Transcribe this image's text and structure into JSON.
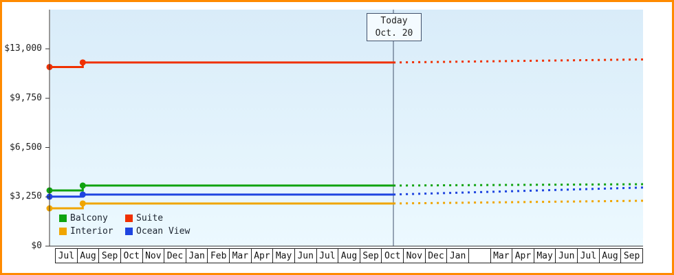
{
  "frame": {
    "border_color": "#ff8a00"
  },
  "legend": {
    "items": [
      {
        "label": "Balcony",
        "color": "#0fa30f"
      },
      {
        "label": "Suite",
        "color": "#f03000"
      },
      {
        "label": "Interior",
        "color": "#f0a500"
      },
      {
        "label": "Ocean View",
        "color": "#1e44e0"
      }
    ]
  },
  "chart_data": {
    "type": "line",
    "title": "",
    "xlabel": "",
    "ylabel": "",
    "grid": false,
    "legend_position": "bottom-left-inside",
    "x_axis": {
      "months": [
        "Jul",
        "Aug",
        "Sep",
        "Oct",
        "Nov",
        "Dec",
        "Jan",
        "Feb",
        "Mar",
        "Apr",
        "May",
        "Jun",
        "Jul",
        "Aug",
        "Sep",
        "Oct",
        "Nov",
        "Dec",
        "Jan",
        "",
        "Mar",
        "Apr",
        "May",
        "Jun",
        "Jul",
        "Aug",
        "Sep"
      ]
    },
    "y_axis": {
      "ticks": [
        {
          "label": "$0",
          "value": 0
        },
        {
          "label": "$3,250",
          "value": 3250
        },
        {
          "label": "$6,500",
          "value": 6500
        },
        {
          "label": "$9,750",
          "value": 9750
        },
        {
          "label": "$13,000",
          "value": 13000
        }
      ],
      "ylim": [
        0,
        14200
      ]
    },
    "today": {
      "label_line1": "Today",
      "label_line2": "Oct. 20",
      "t": 0.5795
    },
    "series": [
      {
        "name": "Suite",
        "color": "#f03000",
        "solid": [
          [
            0,
            11800
          ],
          [
            0.056,
            11800
          ],
          [
            0.056,
            12100
          ],
          [
            0.5795,
            12100
          ]
        ],
        "dotted": [
          [
            0.5795,
            12100
          ],
          [
            1,
            12300
          ]
        ],
        "markers": [
          [
            0,
            11800
          ],
          [
            0.056,
            12100
          ]
        ]
      },
      {
        "name": "Balcony",
        "color": "#0fa30f",
        "solid": [
          [
            0,
            3670
          ],
          [
            0.056,
            3670
          ],
          [
            0.056,
            3990
          ],
          [
            0.5795,
            3990
          ]
        ],
        "dotted": [
          [
            0.5795,
            3990
          ],
          [
            1,
            4080
          ]
        ],
        "markers": [
          [
            0,
            3670
          ],
          [
            0.056,
            3990
          ]
        ]
      },
      {
        "name": "Ocean View",
        "color": "#1e44e0",
        "solid": [
          [
            0,
            3260
          ],
          [
            0.056,
            3260
          ],
          [
            0.056,
            3400
          ],
          [
            0.5795,
            3400
          ]
        ],
        "dotted": [
          [
            0.5795,
            3400
          ],
          [
            1,
            3860
          ]
        ],
        "markers": [
          [
            0,
            3260
          ],
          [
            0.056,
            3400
          ]
        ]
      },
      {
        "name": "Interior",
        "color": "#f0a500",
        "solid": [
          [
            0,
            2490
          ],
          [
            0.056,
            2490
          ],
          [
            0.056,
            2810
          ],
          [
            0.5795,
            2810
          ]
        ],
        "dotted": [
          [
            0.5795,
            2810
          ],
          [
            1,
            2990
          ]
        ],
        "markers": [
          [
            0,
            2490
          ],
          [
            0.056,
            2810
          ]
        ]
      }
    ]
  }
}
